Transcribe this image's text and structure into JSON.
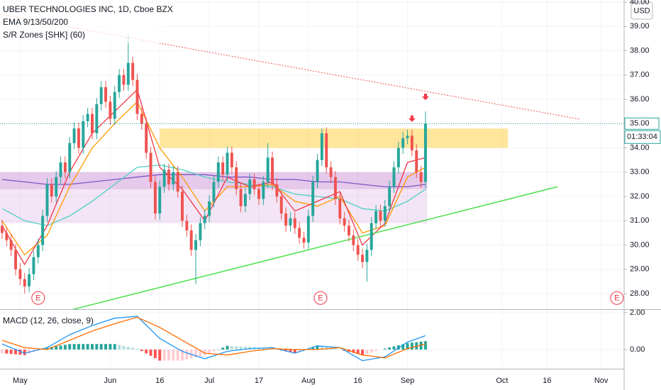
{
  "header": {
    "title": "UBER TECHNOLOGIES INC, 1D, Cboe BZX",
    "indicators": [
      "EMA 9/13/50/200",
      "S/R Zones [SHK] (60)"
    ]
  },
  "currency": "USD",
  "countdown": "01:33:04",
  "chart_data": [
    {
      "type": "candlestick",
      "xlim": [
        -0.47,
        138.1
      ],
      "ylim": [
        27.36,
        40.09
      ],
      "yticks": [
        {
          "value": 28,
          "label": "28.00"
        },
        {
          "value": 29,
          "label": "29.00"
        },
        {
          "value": 30,
          "label": "30.00"
        },
        {
          "value": 31,
          "label": "31.00"
        },
        {
          "value": 32,
          "label": "32.00"
        },
        {
          "value": 33,
          "label": "33.00"
        },
        {
          "value": 34,
          "label": "34.00"
        },
        {
          "value": 35,
          "label": "35.00"
        },
        {
          "value": 36,
          "label": "36.00"
        },
        {
          "value": 37,
          "label": "37.00"
        },
        {
          "value": 38,
          "label": "38.00"
        },
        {
          "value": 39,
          "label": "39.00"
        },
        {
          "value": 40,
          "label": "40.00"
        }
      ],
      "xticks": [
        {
          "value": 4,
          "label": "May"
        },
        {
          "value": 24,
          "label": "Jun"
        },
        {
          "value": 35,
          "label": "16"
        },
        {
          "value": 46,
          "label": "Jul"
        },
        {
          "value": 57,
          "label": "17"
        },
        {
          "value": 68,
          "label": "Aug"
        },
        {
          "value": 79,
          "label": "16"
        },
        {
          "value": 90,
          "label": "Sep"
        },
        {
          "value": 111,
          "label": "Oct"
        },
        {
          "value": 121,
          "label": "16"
        },
        {
          "value": 133,
          "label": "Nov"
        }
      ],
      "up_color": "#26a69a",
      "down_color": "#ef5350",
      "open": [
        30.8,
        30.5,
        30.2,
        29.8,
        29.0,
        28.6,
        28.3,
        28.8,
        29.5,
        30.0,
        31.2,
        32.5,
        32.0,
        32.8,
        33.4,
        33.0,
        34.2,
        34.8,
        34.0,
        35.1,
        35.4,
        34.6,
        35.8,
        36.5,
        35.9,
        35.2,
        36.3,
        37.0,
        36.6,
        37.5,
        36.8,
        35.4,
        35.0,
        33.8,
        32.6,
        31.3,
        32.4,
        33.1,
        32.5,
        33.0,
        32.2,
        31.0,
        30.6,
        29.8,
        30.2,
        30.9,
        31.2,
        31.8,
        32.6,
        33.4,
        32.9,
        33.8,
        33.2,
        32.3,
        31.6,
        32.1,
        32.7,
        32.3,
        31.9,
        32.6,
        33.6,
        32.5,
        32.0,
        31.3,
        30.8,
        31.1,
        30.7,
        30.3,
        30.1,
        31.2,
        32.6,
        33.5,
        34.6,
        33.2,
        32.8,
        31.9,
        31.1,
        30.8,
        30.4,
        30.0,
        29.6,
        29.3,
        29.8,
        30.9,
        31.4,
        31.0,
        31.6,
        32.4,
        33.2,
        34.0,
        34.4,
        34.5,
        33.9,
        33.0,
        32.6
      ],
      "high": [
        31.05,
        30.75,
        30.45,
        30.05,
        29.25,
        28.85,
        29.05,
        29.75,
        30.25,
        31.45,
        32.75,
        32.75,
        33.05,
        33.65,
        33.65,
        34.45,
        35.05,
        35.05,
        35.35,
        35.65,
        35.65,
        36.05,
        36.75,
        36.75,
        36.15,
        36.55,
        37.25,
        37.25,
        38.7,
        37.75,
        37.05,
        35.65,
        35.25,
        34.05,
        32.85,
        32.65,
        33.35,
        33.35,
        33.25,
        33.25,
        32.45,
        31.25,
        30.85,
        30.45,
        31.15,
        31.45,
        32.05,
        32.85,
        33.65,
        33.65,
        34.05,
        34.05,
        33.45,
        32.55,
        32.35,
        32.95,
        32.95,
        32.55,
        32.85,
        34.2,
        33.85,
        32.75,
        32.25,
        31.55,
        31.35,
        31.35,
        30.95,
        30.55,
        31.45,
        32.85,
        33.75,
        34.8,
        34.85,
        33.45,
        33.05,
        32.15,
        31.35,
        31.05,
        30.65,
        30.25,
        29.85,
        30.05,
        31.15,
        31.65,
        31.65,
        31.85,
        32.65,
        33.45,
        34.25,
        34.65,
        34.75,
        34.75,
        34.15,
        33.25,
        35.5
      ],
      "low": [
        30.25,
        29.95,
        29.55,
        28.75,
        28.35,
        28.0,
        28.05,
        28.55,
        29.25,
        29.75,
        30.95,
        31.75,
        31.75,
        32.55,
        32.75,
        32.75,
        33.95,
        33.75,
        33.75,
        34.85,
        34.35,
        34.35,
        35.55,
        35.65,
        34.95,
        34.95,
        36.05,
        36.35,
        36.35,
        36.55,
        35.15,
        34.75,
        33.55,
        32.35,
        31.05,
        31.05,
        32.15,
        32.25,
        32.25,
        31.95,
        30.75,
        30.35,
        29.55,
        28.4,
        29.95,
        30.65,
        30.95,
        31.55,
        32.35,
        32.65,
        32.65,
        32.95,
        32.05,
        31.35,
        31.35,
        31.85,
        32.05,
        31.65,
        31.65,
        32.35,
        32.25,
        31.75,
        31.05,
        30.55,
        30.55,
        30.45,
        30.05,
        29.85,
        29.85,
        30.95,
        32.35,
        33.25,
        32.95,
        32.55,
        31.65,
        30.85,
        30.55,
        30.15,
        29.75,
        29.35,
        29.05,
        28.5,
        29.55,
        30.65,
        30.75,
        30.75,
        31.35,
        32.15,
        32.95,
        33.75,
        34.15,
        33.65,
        32.75,
        32.35,
        32.35
      ],
      "close": [
        30.5,
        30.2,
        29.8,
        29.0,
        28.6,
        28.3,
        28.8,
        29.5,
        30.0,
        31.2,
        32.5,
        32.0,
        32.8,
        33.4,
        33.0,
        34.2,
        34.8,
        34.0,
        35.1,
        35.4,
        34.6,
        35.8,
        36.5,
        35.9,
        35.2,
        36.3,
        37.0,
        36.6,
        37.5,
        36.8,
        35.4,
        35.0,
        33.8,
        32.6,
        31.3,
        32.4,
        33.1,
        32.5,
        33.0,
        32.2,
        31.0,
        30.6,
        29.8,
        30.2,
        30.9,
        31.2,
        31.8,
        32.6,
        33.4,
        32.9,
        33.8,
        33.2,
        32.3,
        31.6,
        32.1,
        32.7,
        32.3,
        31.9,
        32.6,
        33.6,
        32.5,
        32.0,
        31.3,
        30.8,
        31.1,
        30.7,
        30.3,
        30.1,
        31.2,
        32.6,
        33.5,
        34.6,
        33.2,
        32.8,
        31.9,
        31.1,
        30.8,
        30.4,
        30.0,
        29.6,
        29.3,
        29.8,
        30.9,
        31.4,
        31.0,
        31.6,
        32.4,
        33.2,
        34.0,
        34.4,
        34.5,
        33.9,
        33.0,
        32.6,
        35.0
      ],
      "lines": [
        {
          "color": "#7e57c2",
          "x": [
            0,
            5,
            10,
            15,
            20,
            25,
            30,
            35,
            40,
            45,
            50,
            55,
            60,
            65,
            70,
            75,
            80,
            85,
            90,
            94
          ],
          "values": [
            32.7,
            32.6,
            32.5,
            32.5,
            32.6,
            32.7,
            32.8,
            32.9,
            32.9,
            32.9,
            32.8,
            32.8,
            32.7,
            32.7,
            32.6,
            32.6,
            32.5,
            32.4,
            32.4,
            32.5
          ]
        },
        {
          "color": "#4dd0c3",
          "x": [
            0,
            5,
            10,
            15,
            20,
            25,
            30,
            35,
            40,
            45,
            50,
            55,
            60,
            65,
            70,
            75,
            80,
            85,
            90,
            94
          ],
          "values": [
            31.5,
            31.0,
            30.8,
            31.2,
            31.8,
            32.5,
            33.2,
            33.3,
            33.1,
            32.8,
            32.6,
            32.5,
            32.4,
            32.1,
            32.0,
            31.9,
            31.5,
            31.4,
            31.8,
            32.3
          ]
        },
        {
          "color": "#ff9800",
          "x": [
            0,
            5,
            10,
            15,
            20,
            25,
            30,
            35,
            40,
            45,
            50,
            55,
            60,
            65,
            70,
            75,
            80,
            85,
            90,
            94
          ],
          "values": [
            31.0,
            29.6,
            30.4,
            32.4,
            34.0,
            35.0,
            35.9,
            34.0,
            32.8,
            31.4,
            32.4,
            32.4,
            32.5,
            31.8,
            31.6,
            32.0,
            30.5,
            30.8,
            32.8,
            33.2
          ]
        },
        {
          "color": "#f23645",
          "x": [
            0,
            5,
            10,
            15,
            20,
            25,
            30,
            35,
            40,
            45,
            50,
            55,
            60,
            65,
            70,
            75,
            80,
            85,
            90,
            94
          ],
          "values": [
            30.8,
            29.2,
            30.8,
            33.0,
            34.6,
            35.5,
            36.4,
            33.2,
            32.3,
            31.0,
            32.8,
            32.4,
            32.6,
            31.4,
            31.8,
            32.2,
            30.0,
            30.9,
            33.4,
            33.6
          ]
        }
      ],
      "zones": [
        {
          "x": [
            -0.47,
            94.4
          ],
          "y": [
            30.9,
            32.3
          ],
          "color": "rgba(156,39,176,0.12)"
        },
        {
          "x": [
            -0.47,
            94.4
          ],
          "y": [
            32.3,
            33.0
          ],
          "color": "rgba(156,39,176,0.25)"
        },
        {
          "x": [
            35,
            112.3
          ],
          "y": [
            34.0,
            34.8
          ],
          "color": "rgba(255,193,7,0.4)"
        }
      ],
      "trendlines": [
        {
          "x": [
            -0.47,
            128.3
          ],
          "y": [
            39.5,
            35.18
          ],
          "color": "#ef5350",
          "dash": true
        },
        {
          "x": [
            15.3,
            123.3
          ],
          "y": [
            27.33,
            32.4
          ],
          "color": "#4ce04c",
          "dash": false
        }
      ],
      "earnings": {
        "x": [
          8,
          70.7,
          136.5
        ],
        "y": 27.82,
        "label": "E",
        "color": "#f23645"
      },
      "signals": {
        "x": [
          91,
          94
        ],
        "y": [
          35.1,
          36.0
        ],
        "color": "#f23645"
      },
      "last_price": {
        "value": 35,
        "label": "35.00"
      }
    },
    {
      "type": "macd",
      "title": "MACD (12, 26, close, 9)",
      "ylim": [
        -1.04,
        2.15
      ],
      "yticks": [
        {
          "value": 2,
          "label": "2.00"
        },
        {
          "value": 0,
          "label": "0.00"
        }
      ],
      "hist_colors": [
        "#26a69a",
        "#b2dfdb",
        "#ff5252",
        "#ffcdd2"
      ],
      "histogram": [
        -0.2,
        -0.22,
        -0.24,
        -0.26,
        -0.28,
        -0.3,
        -0.22,
        -0.14,
        -0.06,
        0.02,
        0.1,
        0.14,
        0.18,
        0.22,
        0.26,
        0.3,
        0.3,
        0.3,
        0.3,
        0.3,
        0.3,
        0.3,
        0.3,
        0.3,
        0.3,
        0.3,
        0.25,
        0.2,
        0.15,
        0.1,
        0.05,
        -0.08,
        -0.21,
        -0.34,
        -0.47,
        -0.6,
        -0.6,
        -0.6,
        -0.6,
        -0.6,
        -0.6,
        -0.54,
        -0.48,
        -0.42,
        -0.36,
        -0.3,
        -0.2,
        -0.1,
        0.0,
        0.1,
        0.2,
        0.19,
        0.18,
        0.17,
        0.16,
        0.15,
        0.13,
        0.11,
        0.09,
        0.07,
        0.05,
        0.0,
        -0.05,
        -0.1,
        -0.15,
        -0.2,
        -0.12,
        -0.04,
        0.04,
        0.12,
        0.2,
        0.16,
        0.12,
        0.08,
        0.04,
        0.0,
        -0.06,
        -0.12,
        -0.18,
        -0.24,
        -0.3,
        -0.23,
        -0.16,
        -0.09,
        -0.02,
        0.05,
        0.11,
        0.17,
        0.23,
        0.29,
        0.35,
        0.38,
        0.4,
        0.43,
        0.45
      ],
      "lines": [
        {
          "color": "#2196f3",
          "x": [
            0,
            5,
            10,
            15,
            20,
            25,
            30,
            35,
            40,
            45,
            50,
            55,
            60,
            65,
            70,
            75,
            80,
            85,
            90,
            94
          ],
          "values": [
            0.3,
            -0.2,
            0.1,
            0.8,
            1.3,
            1.7,
            1.8,
            0.6,
            -0.1,
            -0.5,
            -0.1,
            0.05,
            0.1,
            -0.2,
            0.2,
            0.1,
            -0.6,
            -0.4,
            0.4,
            0.75
          ]
        },
        {
          "color": "#ff6d00",
          "x": [
            0,
            5,
            10,
            15,
            20,
            25,
            30,
            35,
            40,
            45,
            50,
            55,
            60,
            65,
            70,
            75,
            80,
            85,
            90,
            94
          ],
          "values": [
            0.5,
            0.1,
            0.0,
            0.5,
            1.0,
            1.4,
            1.75,
            1.2,
            0.5,
            -0.2,
            -0.3,
            -0.1,
            0.05,
            0.0,
            0.0,
            0.1,
            -0.3,
            -0.45,
            0.05,
            0.3
          ]
        }
      ]
    }
  ]
}
